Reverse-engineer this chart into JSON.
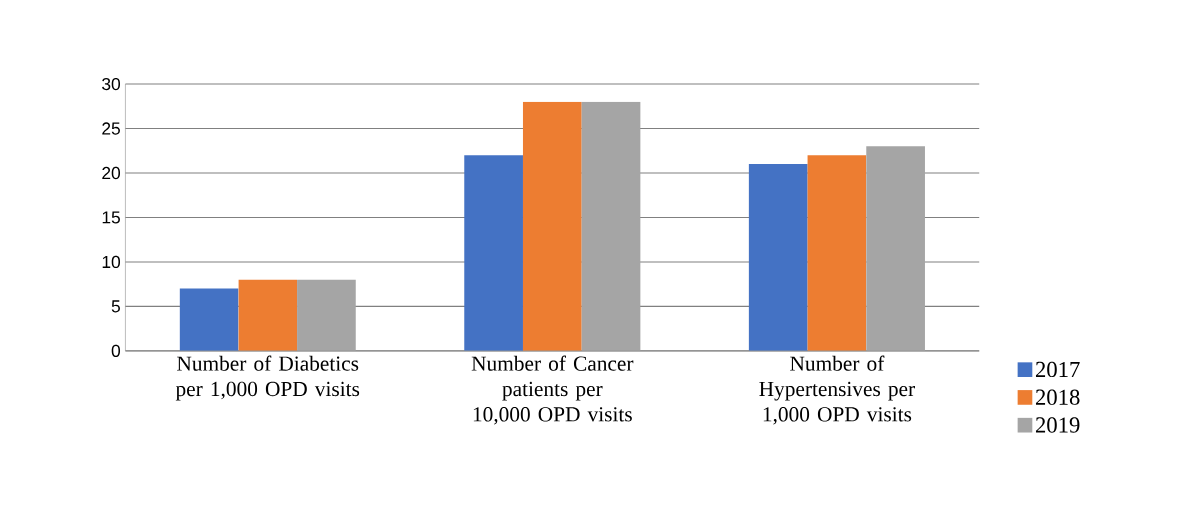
{
  "chart_data": {
    "type": "bar",
    "categories": [
      "Number of Diabetics per 1,000 OPD visits",
      "Number of Cancer patients per 10,000 OPD visits",
      "Number of Hypertensives per 1,000 OPD visits"
    ],
    "series": [
      {
        "name": "2017",
        "color": "#4472c4",
        "values": [
          7,
          22,
          21
        ]
      },
      {
        "name": "2018",
        "color": "#ed7d31",
        "values": [
          8,
          28,
          22
        ]
      },
      {
        "name": "2019",
        "color": "#a5a5a5",
        "values": [
          8,
          28,
          23
        ]
      }
    ],
    "ylim": [
      0,
      30
    ],
    "yticks": [
      0,
      5,
      10,
      15,
      20,
      25,
      30
    ],
    "grid": "y",
    "legend": "bottom right"
  }
}
